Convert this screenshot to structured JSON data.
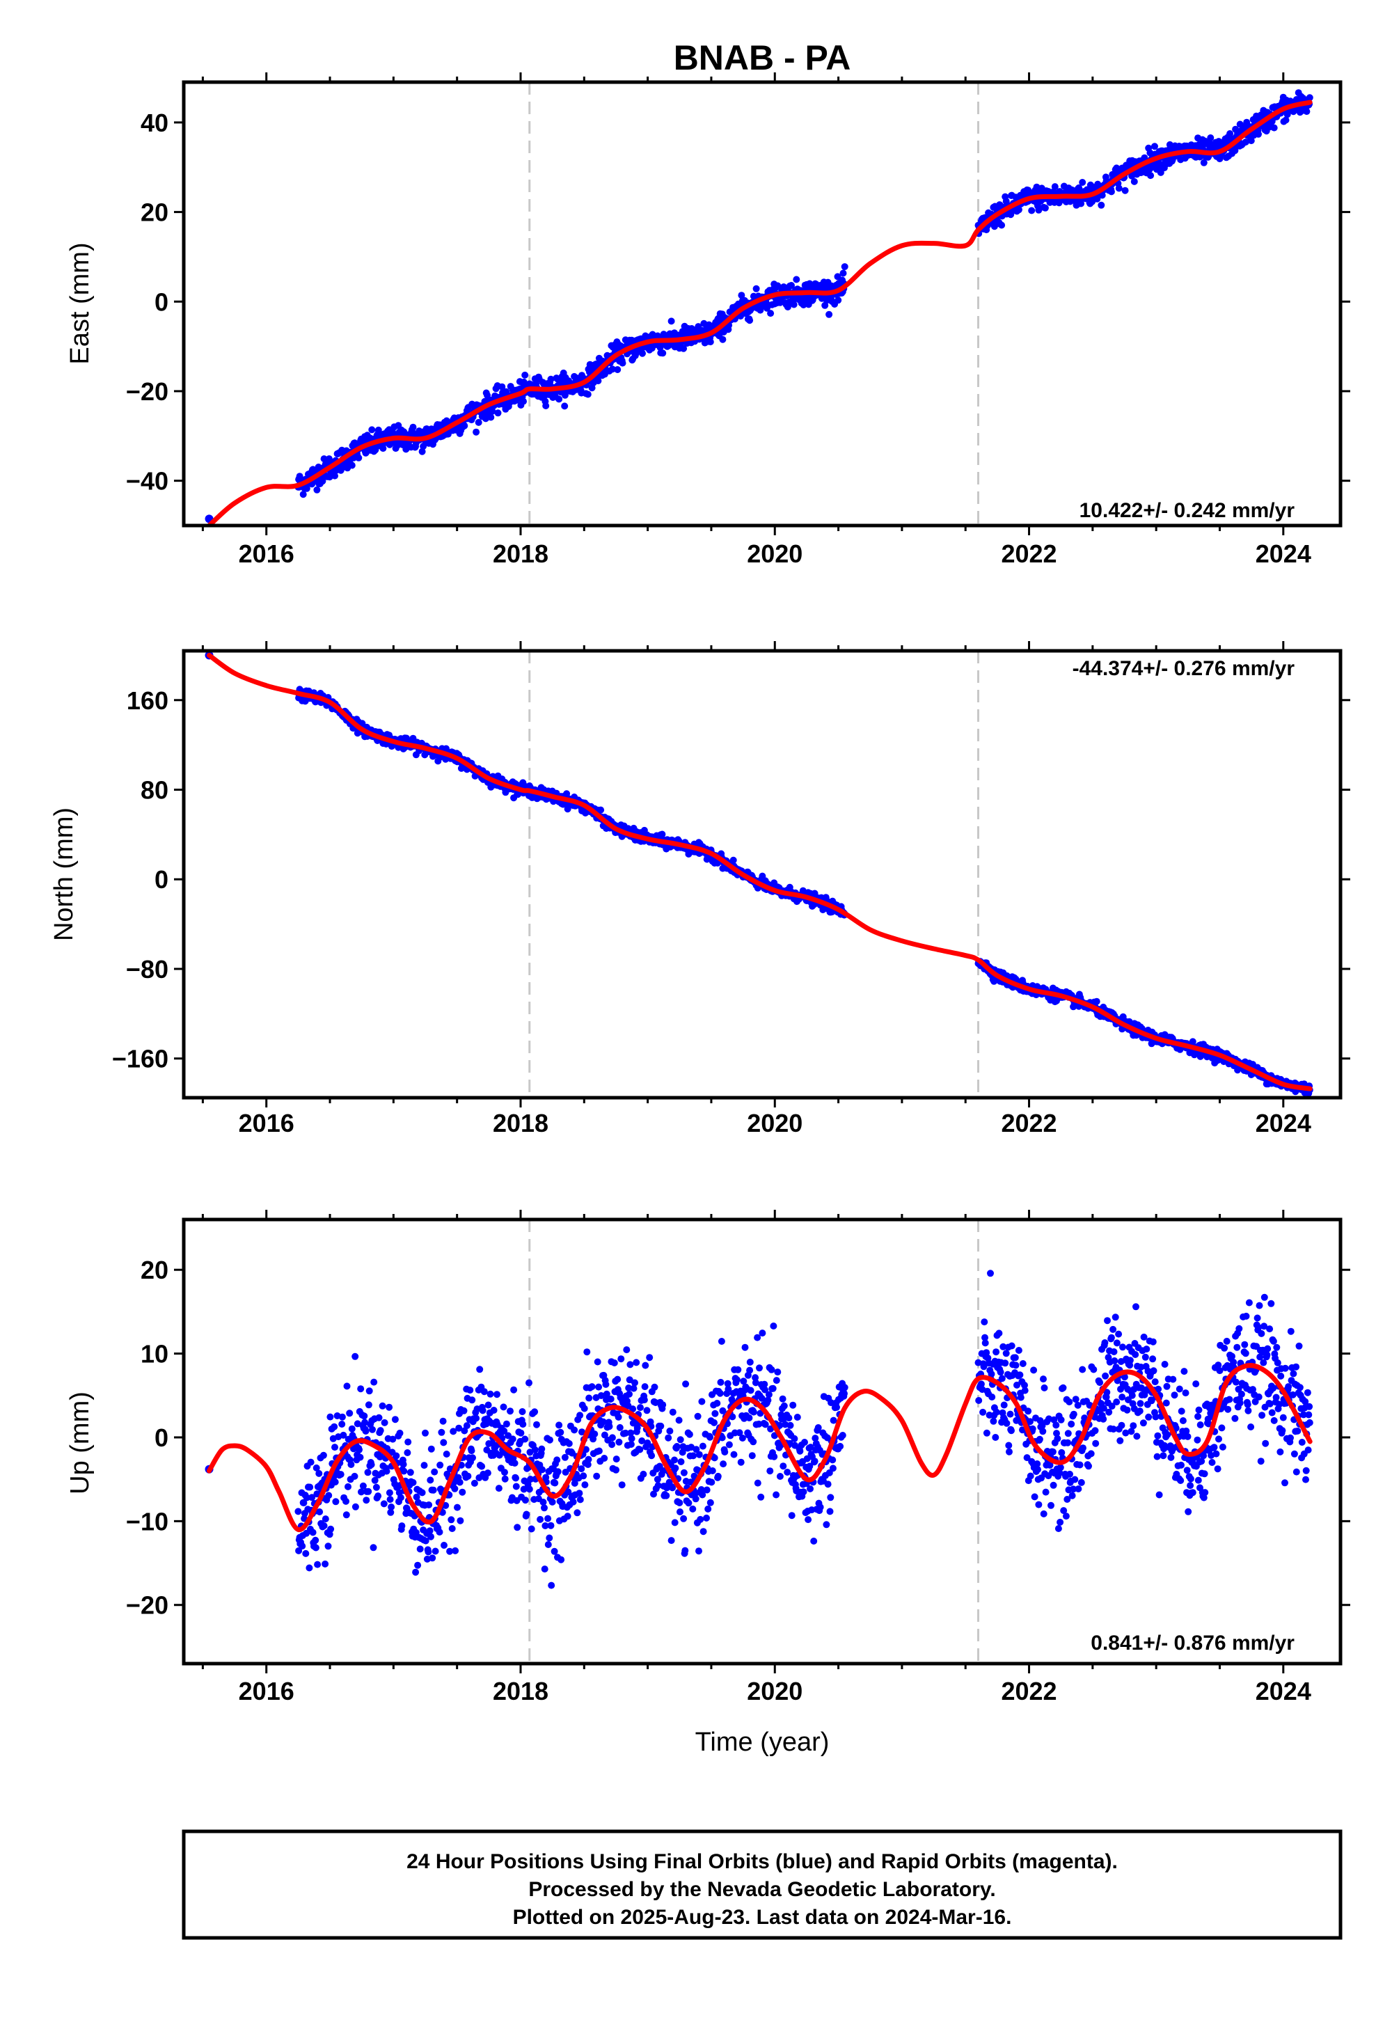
{
  "title": "BNAB - PA",
  "xlabel": "Time (year)",
  "footer": {
    "line1": "24 Hour Positions Using Final Orbits (blue) and Rapid Orbits (magenta).",
    "line2": "Processed by the Nevada Geodetic Laboratory.",
    "line3": "Plotted on 2025-Aug-23. Last data on 2024-Mar-16."
  },
  "colors": {
    "data": "#0000ff",
    "model": "#ff0000",
    "dash": "#c8c8c8"
  },
  "chart_data": [
    {
      "type": "scatter",
      "panel": "east",
      "ylabel": "East (mm)",
      "rate": "10.422+/- 0.242 mm/yr",
      "xlim": [
        2015.35,
        2024.45
      ],
      "ylim": [
        -50,
        49
      ],
      "xticks": [
        2016,
        2018,
        2020,
        2022,
        2024
      ],
      "yticks": [
        -40,
        -20,
        0,
        20,
        40
      ],
      "grid": false,
      "dashed_lines_x": [
        2018.07,
        2021.6
      ],
      "data_segments": [
        [
          2016.25,
          2018.07
        ],
        [
          2018.07,
          2020.55
        ],
        [
          2021.6,
          2024.21
        ]
      ],
      "model_curve": {
        "x": [
          2015.55,
          2015.75,
          2016.0,
          2016.25,
          2016.5,
          2016.75,
          2017.0,
          2017.25,
          2017.5,
          2017.75,
          2018.0,
          2018.07,
          2018.25,
          2018.5,
          2018.75,
          2019.0,
          2019.25,
          2019.5,
          2019.75,
          2020.0,
          2020.25,
          2020.5,
          2020.75,
          2021.0,
          2021.25,
          2021.5,
          2021.6,
          2021.75,
          2022.0,
          2022.25,
          2022.5,
          2022.75,
          2023.0,
          2023.25,
          2023.5,
          2023.75,
          2024.0,
          2024.21
        ],
        "y": [
          -50,
          -45,
          -41.5,
          -41,
          -37,
          -32.5,
          -30.5,
          -30.5,
          -27,
          -23,
          -20.5,
          -19.5,
          -19.5,
          -18,
          -12,
          -9,
          -8.5,
          -7,
          -1.5,
          1.5,
          2,
          2.5,
          8.5,
          12.5,
          13,
          12.5,
          16,
          19.5,
          23,
          23.5,
          24,
          28.5,
          32,
          33.5,
          33.5,
          38.5,
          43,
          44.5
        ]
      },
      "scatter_sigma": 1.3,
      "first_point": [
        2015.55,
        -48.5
      ]
    },
    {
      "type": "scatter",
      "panel": "north",
      "ylabel": "North (mm)",
      "rate": "-44.374+/- 0.276 mm/yr",
      "xlim": [
        2015.35,
        2024.45
      ],
      "ylim": [
        -195,
        204
      ],
      "xticks": [
        2016,
        2018,
        2020,
        2022,
        2024
      ],
      "yticks": [
        -160,
        -80,
        0,
        80,
        160
      ],
      "grid": false,
      "dashed_lines_x": [
        2018.07,
        2021.6
      ],
      "data_segments": [
        [
          2016.25,
          2018.07
        ],
        [
          2018.07,
          2020.55
        ],
        [
          2021.6,
          2024.21
        ]
      ],
      "model_curve": {
        "x": [
          2015.55,
          2015.75,
          2016.0,
          2016.25,
          2016.5,
          2016.75,
          2017.0,
          2017.25,
          2017.5,
          2017.75,
          2018.0,
          2018.07,
          2018.25,
          2018.5,
          2018.75,
          2019.0,
          2019.25,
          2019.5,
          2019.75,
          2020.0,
          2020.25,
          2020.5,
          2020.75,
          2021.0,
          2021.25,
          2021.5,
          2021.6,
          2021.75,
          2022.0,
          2022.25,
          2022.5,
          2022.75,
          2023.0,
          2023.25,
          2023.5,
          2023.75,
          2024.0,
          2024.21
        ],
        "y": [
          200,
          184,
          173,
          166,
          158,
          134,
          123,
          117,
          108,
          90,
          80,
          79,
          74,
          66,
          45,
          36,
          31,
          23,
          4,
          -10,
          -16,
          -27,
          -45,
          -55,
          -62,
          -68,
          -72,
          -86,
          -98,
          -104,
          -114,
          -130,
          -142,
          -149,
          -157,
          -170,
          -183,
          -187
        ]
      },
      "scatter_sigma": 2.5,
      "first_point": [
        2015.55,
        200
      ]
    },
    {
      "type": "scatter",
      "panel": "up",
      "ylabel": "Up (mm)",
      "rate": "0.841+/- 0.876 mm/yr",
      "xlim": [
        2015.35,
        2024.45
      ],
      "ylim": [
        -27,
        26
      ],
      "xticks": [
        2016,
        2018,
        2020,
        2022,
        2024
      ],
      "yticks": [
        -20,
        -10,
        0,
        10,
        20
      ],
      "grid": false,
      "dashed_lines_x": [
        2018.07,
        2021.6
      ],
      "data_segments": [
        [
          2016.25,
          2018.07
        ],
        [
          2018.07,
          2020.55
        ],
        [
          2021.6,
          2024.21
        ]
      ],
      "model_curve": {
        "x": [
          2015.55,
          2015.65,
          2015.75,
          2015.85,
          2016.0,
          2016.1,
          2016.25,
          2016.4,
          2016.55,
          2016.7,
          2016.85,
          2017.0,
          2017.15,
          2017.3,
          2017.45,
          2017.6,
          2017.75,
          2017.9,
          2018.07,
          2018.25,
          2018.4,
          2018.55,
          2018.7,
          2018.85,
          2019.0,
          2019.15,
          2019.3,
          2019.45,
          2019.6,
          2019.75,
          2019.9,
          2020.05,
          2020.25,
          2020.4,
          2020.55,
          2020.7,
          2020.85,
          2021.0,
          2021.15,
          2021.25,
          2021.35,
          2021.5,
          2021.6,
          2021.75,
          2021.9,
          2022.05,
          2022.25,
          2022.4,
          2022.55,
          2022.7,
          2022.85,
          2023.0,
          2023.15,
          2023.25,
          2023.4,
          2023.55,
          2023.7,
          2023.85,
          2024.0,
          2024.21
        ],
        "y": [
          -4,
          -1.5,
          -1,
          -1.5,
          -3.5,
          -6.5,
          -11,
          -8,
          -3,
          -0.5,
          -1,
          -3,
          -8,
          -10,
          -5,
          0,
          0.5,
          -1.5,
          -3,
          -7,
          -4.5,
          1.5,
          3.5,
          3,
          1,
          -3.5,
          -6.5,
          -3.5,
          2,
          4.5,
          3.5,
          0,
          -5,
          -2.5,
          3.5,
          5.5,
          4.5,
          2,
          -3,
          -4.5,
          -2,
          4,
          7,
          6.5,
          4,
          -1,
          -3,
          -0.5,
          5,
          7.5,
          7.5,
          5,
          0,
          -2,
          -0.5,
          6.5,
          8.5,
          8,
          5.5,
          -0.5
        ]
      },
      "scatter_sigma": 3.6,
      "first_point": [
        2015.55,
        -3.8
      ]
    }
  ]
}
